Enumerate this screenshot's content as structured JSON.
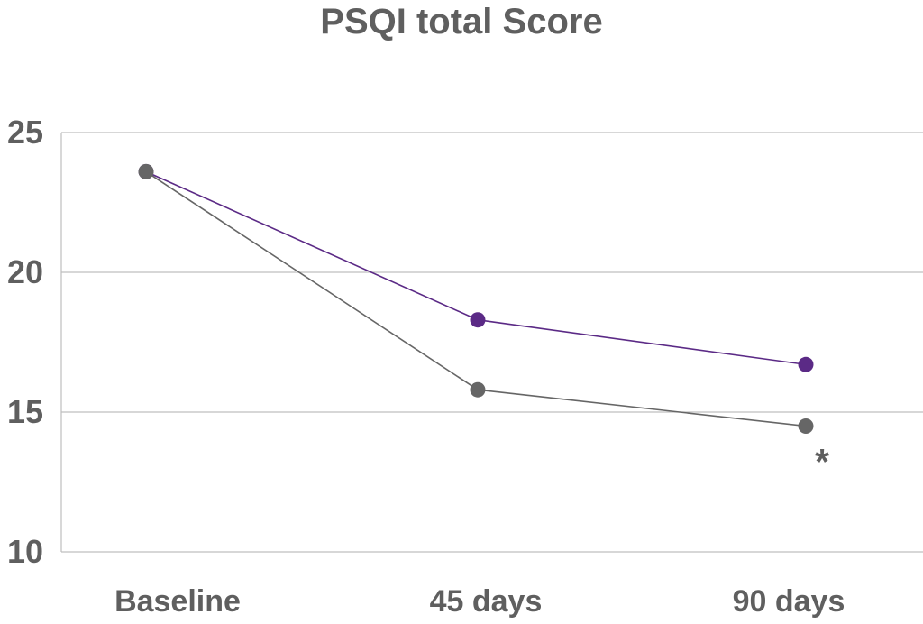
{
  "chart_data": {
    "type": "line",
    "title": "PSQI total Score",
    "categories": [
      "Baseline",
      "45 days",
      "90 days"
    ],
    "ylim": [
      10,
      25
    ],
    "yticks": [
      10,
      15,
      20,
      25
    ],
    "grid": true,
    "series": [
      {
        "values": [
          23.6,
          18.3,
          16.7
        ],
        "color": "#5b2a86"
      },
      {
        "values": [
          23.6,
          15.8,
          14.5
        ],
        "color": "#666666"
      }
    ],
    "annotations": [
      {
        "text": "*",
        "category": "90 days",
        "y": 13.5
      }
    ]
  }
}
